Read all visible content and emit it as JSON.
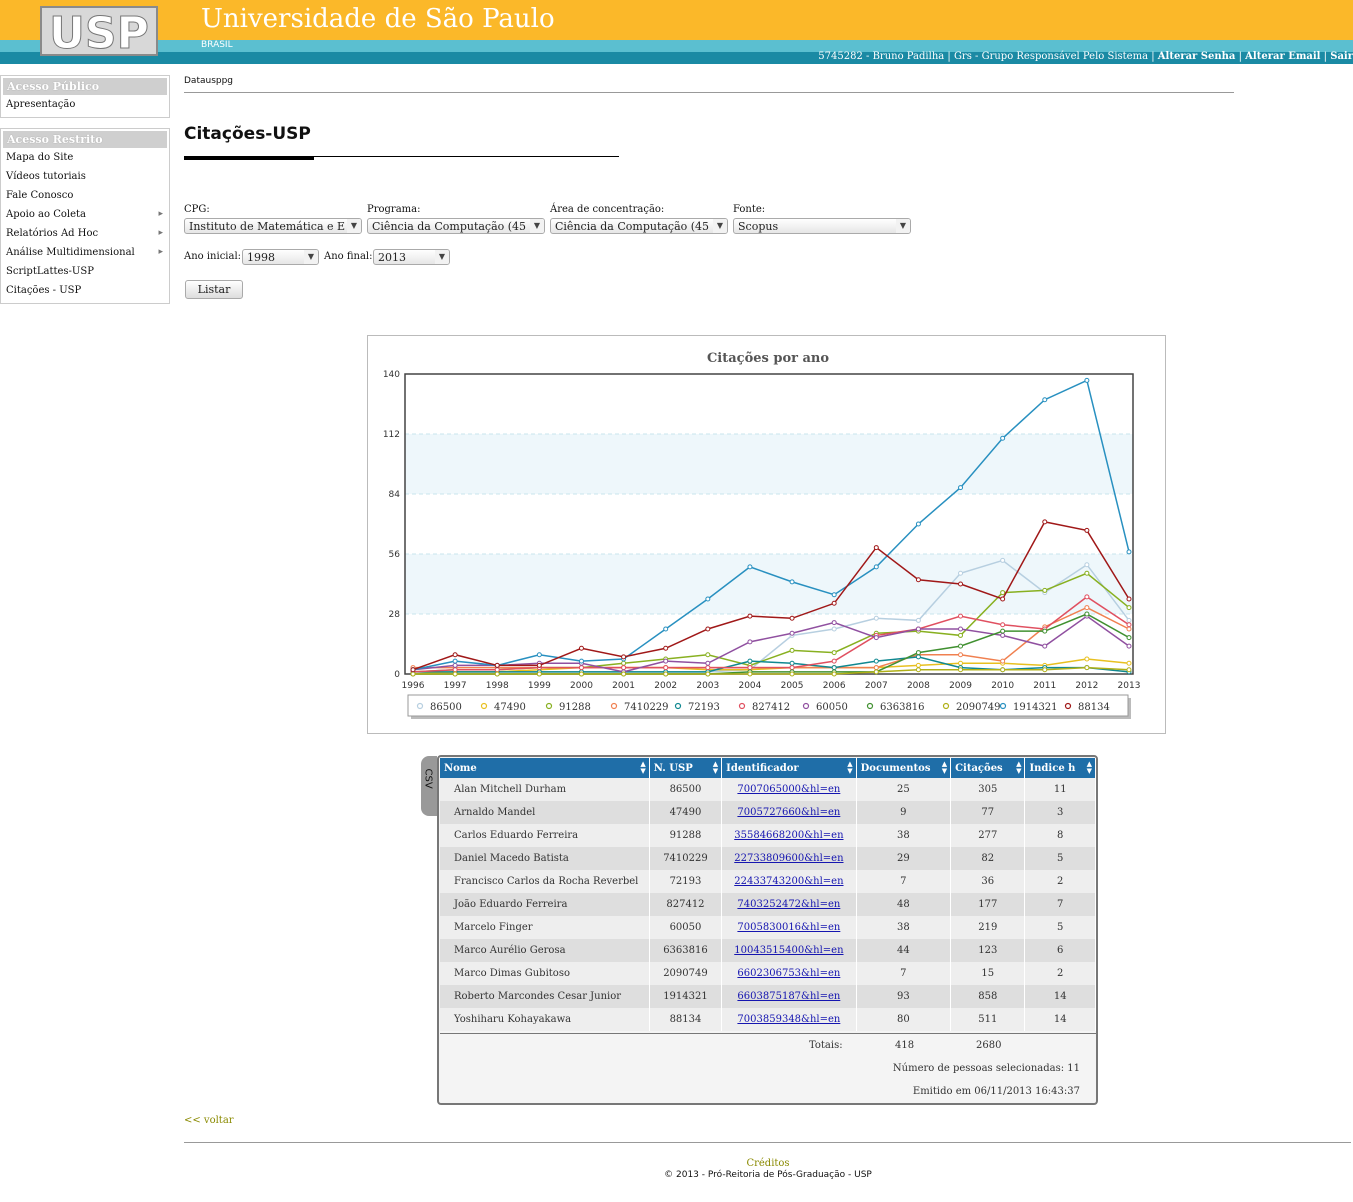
{
  "header": {
    "logo_text": "USP",
    "title": "Universidade de São Paulo",
    "subtitle": "BRASIL",
    "user_info": "5745282 - Bruno Padilha | Grs - Grupo Responsável Pelo Sistema |",
    "links": [
      "Alterar Senha",
      "Alterar Email",
      "Sair"
    ]
  },
  "sidebar": {
    "public": {
      "header": "Acesso Público",
      "items": [
        {
          "label": "Apresentação"
        }
      ]
    },
    "restricted": {
      "header": "Acesso Restrito",
      "items": [
        {
          "label": "Mapa do Site"
        },
        {
          "label": "Vídeos tutoriais"
        },
        {
          "label": "Fale Conosco"
        },
        {
          "label": "Apoio ao Coleta",
          "submenu": true
        },
        {
          "label": "Relatórios Ad Hoc",
          "submenu": true
        },
        {
          "label": "Análise Multidimensional",
          "submenu": true
        },
        {
          "label": "ScriptLattes-USP"
        },
        {
          "label": "Citações - USP"
        }
      ]
    }
  },
  "breadcrumb": "Datausppg",
  "page_title": "Citações-USP",
  "filters": {
    "cpg": {
      "label": "CPG:",
      "value": "Instituto de Matemática e E"
    },
    "programa": {
      "label": "Programa:",
      "value": "Ciência da Computação (45"
    },
    "area": {
      "label": "Área de concentração:",
      "value": "Ciência da Computação (45"
    },
    "fonte": {
      "label": "Fonte:",
      "value": "Scopus"
    },
    "ano_inicial": {
      "label": "Ano inicial:",
      "value": "1998"
    },
    "ano_final": {
      "label": "Ano final:",
      "value": "2013"
    },
    "listar_label": "Listar"
  },
  "chart_data": {
    "type": "line",
    "title": "Citações por ano",
    "x": [
      1996,
      1997,
      1998,
      1999,
      2000,
      2001,
      2002,
      2003,
      2004,
      2005,
      2006,
      2007,
      2008,
      2009,
      2010,
      2011,
      2012,
      2013
    ],
    "ylim": [
      0,
      140
    ],
    "yticks": [
      0,
      28,
      56,
      84,
      112,
      140
    ],
    "legend_position": "bottom",
    "series": [
      {
        "name": "86500",
        "color": "#b7cfe0",
        "values": [
          0,
          1,
          1,
          1,
          1,
          1,
          1,
          1,
          2,
          18,
          21,
          26,
          25,
          47,
          53,
          38,
          51,
          25
        ]
      },
      {
        "name": "47490",
        "color": "#e8c020",
        "values": [
          0,
          1,
          1,
          2,
          3,
          3,
          3,
          2,
          2,
          3,
          3,
          3,
          4,
          5,
          5,
          4,
          7,
          5
        ]
      },
      {
        "name": "91288",
        "color": "#88b020",
        "values": [
          1,
          2,
          2,
          3,
          3,
          5,
          7,
          9,
          4,
          11,
          10,
          19,
          20,
          18,
          38,
          39,
          47,
          31
        ]
      },
      {
        "name": "7410229",
        "color": "#f08050",
        "values": [
          3,
          3,
          3,
          3,
          3,
          3,
          3,
          3,
          3,
          3,
          3,
          3,
          9,
          9,
          6,
          22,
          31,
          21
        ]
      },
      {
        "name": "72193",
        "color": "#108890",
        "values": [
          1,
          1,
          1,
          1,
          1,
          1,
          1,
          1,
          6,
          5,
          3,
          6,
          8,
          3,
          2,
          3,
          3,
          1
        ]
      },
      {
        "name": "827412",
        "color": "#e05060",
        "values": [
          1,
          2,
          2,
          3,
          3,
          3,
          3,
          3,
          3,
          3,
          6,
          18,
          21,
          27,
          23,
          21,
          36,
          23
        ]
      },
      {
        "name": "60050",
        "color": "#9050a0",
        "values": [
          2,
          4,
          4,
          5,
          5,
          1,
          6,
          5,
          15,
          19,
          24,
          17,
          21,
          21,
          18,
          13,
          27,
          13
        ]
      },
      {
        "name": "6363816",
        "color": "#409030",
        "values": [
          0,
          0,
          0,
          0,
          0,
          0,
          0,
          0,
          1,
          1,
          1,
          1,
          10,
          13,
          20,
          20,
          28,
          17
        ]
      },
      {
        "name": "2090749",
        "color": "#b0b018",
        "values": [
          0,
          0,
          0,
          0,
          0,
          0,
          0,
          0,
          0,
          0,
          0,
          1,
          2,
          2,
          2,
          2,
          3,
          2
        ]
      },
      {
        "name": "1914321",
        "color": "#2890c0",
        "values": [
          2,
          6,
          4,
          9,
          6,
          7,
          21,
          35,
          50,
          43,
          37,
          50,
          70,
          87,
          110,
          128,
          137,
          57
        ]
      },
      {
        "name": "88134",
        "color": "#a01818",
        "values": [
          2,
          9,
          4,
          4,
          12,
          8,
          12,
          21,
          27,
          26,
          33,
          59,
          44,
          42,
          35,
          71,
          67,
          35
        ]
      }
    ]
  },
  "table": {
    "csv_label": "CSV",
    "headers": [
      "Nome",
      "N. USP",
      "Identificador",
      "Documentos",
      "Citações",
      "Indice h"
    ],
    "rows": [
      [
        "Alan Mitchell Durham",
        "86500",
        "7007065000&hl=en",
        "25",
        "305",
        "11"
      ],
      [
        "Arnaldo Mandel",
        "47490",
        "7005727660&hl=en",
        "9",
        "77",
        "3"
      ],
      [
        "Carlos Eduardo Ferreira",
        "91288",
        "35584668200&hl=en",
        "38",
        "277",
        "8"
      ],
      [
        "Daniel Macedo Batista",
        "7410229",
        "22733809600&hl=en",
        "29",
        "82",
        "5"
      ],
      [
        "Francisco Carlos da Rocha Reverbel",
        "72193",
        "22433743200&hl=en",
        "7",
        "36",
        "2"
      ],
      [
        "João Eduardo Ferreira",
        "827412",
        "7403252472&hl=en",
        "48",
        "177",
        "7"
      ],
      [
        "Marcelo Finger",
        "60050",
        "7005830016&hl=en",
        "38",
        "219",
        "5"
      ],
      [
        "Marco Aurélio Gerosa",
        "6363816",
        "10043515400&hl=en",
        "44",
        "123",
        "6"
      ],
      [
        "Marco Dimas Gubitoso",
        "2090749",
        "6602306753&hl=en",
        "7",
        "15",
        "2"
      ],
      [
        "Roberto Marcondes Cesar Junior",
        "1914321",
        "6603875187&hl=en",
        "93",
        "858",
        "14"
      ],
      [
        "Yoshiharu Kohayakawa",
        "88134",
        "7003859348&hl=en",
        "80",
        "511",
        "14"
      ]
    ],
    "totals_label": "Totais:",
    "total_documentos": "418",
    "total_citacoes": "2680",
    "selected_people": "Número de pessoas selecionadas: 11",
    "emitted": "Emitido em 06/11/2013 16:43:37"
  },
  "voltar_label": "<<  voltar",
  "footer": {
    "credits": "Créditos",
    "copyright": "© 2013 - Pró-Reitoria de Pós-Graduação - USP"
  }
}
